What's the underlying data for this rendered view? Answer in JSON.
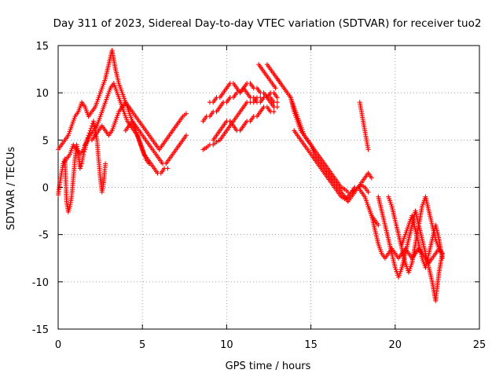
{
  "chart_data": {
    "type": "scatter",
    "title": "Day 311 of 2023, Sidereal Day-to-day VTEC variation (SDTVAR) for receiver tuo2",
    "xlabel": "GPS time / hours",
    "ylabel": "SDTVAR / TECUs",
    "xlim": [
      0,
      25
    ],
    "ylim": [
      -15,
      15
    ],
    "xticks": [
      "0",
      "5",
      "10",
      "15",
      "20",
      "25"
    ],
    "yticks": [
      "-15",
      "-10",
      "-5",
      "0",
      "5",
      "10",
      "15"
    ],
    "grid": true,
    "marker": "+",
    "color": "#ff0000",
    "series": [
      {
        "name": "t1",
        "x": [
          0.0,
          0.1,
          0.2,
          0.3,
          0.4,
          0.5,
          0.6,
          0.7,
          0.8,
          0.9,
          1.0,
          1.1,
          1.2,
          1.3,
          1.4,
          1.5,
          1.6,
          1.7,
          1.8,
          1.9,
          2.0,
          2.1,
          2.2,
          2.3,
          2.4,
          2.5,
          2.6,
          2.7,
          2.8
        ],
        "y": [
          -0.8,
          0.5,
          1.5,
          2.5,
          3.0,
          -1.5,
          -2.6,
          -2.0,
          -1.0,
          1.0,
          3.0,
          4.5,
          3.5,
          2.0,
          2.5,
          3.5,
          4.0,
          5.0,
          5.5,
          6.0,
          6.5,
          7.0,
          6.0,
          5.0,
          3.0,
          1.0,
          -0.5,
          0.5,
          2.5
        ]
      },
      {
        "name": "t2",
        "x": [
          0.0,
          0.2,
          0.4,
          0.6,
          0.8,
          1.0,
          1.2,
          1.4,
          1.6,
          1.8,
          2.0,
          2.2,
          2.4,
          2.6,
          2.8,
          3.0,
          3.2,
          3.4,
          3.6,
          3.8,
          4.0,
          4.2,
          4.4,
          4.6,
          4.8,
          5.0,
          5.2,
          5.4
        ],
        "y": [
          4.0,
          4.5,
          5.0,
          5.5,
          6.5,
          7.5,
          8.0,
          9.0,
          8.5,
          7.5,
          8.0,
          8.5,
          9.5,
          10.5,
          11.5,
          13.0,
          14.5,
          12.5,
          11.0,
          10.0,
          9.0,
          8.0,
          7.0,
          6.0,
          5.0,
          4.0,
          3.0,
          2.5
        ]
      },
      {
        "name": "t3",
        "x": [
          0.3,
          0.5,
          0.7,
          0.9,
          1.1,
          1.3,
          1.5,
          1.7,
          1.9,
          2.1,
          2.3,
          2.5,
          2.7,
          2.9,
          3.1,
          3.3,
          3.5,
          3.7,
          3.9,
          4.1,
          4.3,
          4.5,
          4.7,
          4.9,
          5.1,
          5.3,
          5.5,
          5.7,
          5.9,
          6.1,
          6.3,
          6.5
        ],
        "y": [
          2.5,
          3.0,
          3.5,
          4.5,
          4.0,
          3.5,
          4.0,
          5.0,
          5.5,
          6.0,
          6.5,
          7.5,
          8.5,
          9.5,
          10.5,
          11.0,
          10.0,
          9.0,
          8.0,
          7.0,
          6.5,
          6.0,
          5.5,
          4.5,
          3.5,
          3.0,
          2.5,
          2.0,
          1.5,
          1.5,
          2.0,
          2.0
        ]
      },
      {
        "name": "t4",
        "x": [
          1.6,
          1.8,
          2.0,
          2.2,
          2.4,
          2.6,
          2.8,
          3.0,
          3.2,
          3.4,
          3.6,
          3.8,
          4.0,
          4.2,
          4.4,
          4.6,
          4.8,
          5.0,
          5.2,
          5.4,
          5.6,
          5.8,
          6.0,
          6.2,
          6.4,
          6.6,
          6.8,
          7.0,
          7.2,
          7.4,
          7.6
        ],
        "y": [
          4.5,
          5.0,
          5.0,
          5.5,
          6.0,
          6.5,
          6.0,
          5.5,
          6.0,
          7.0,
          8.0,
          8.5,
          9.0,
          8.5,
          8.0,
          7.5,
          7.0,
          6.5,
          6.0,
          5.5,
          5.0,
          4.5,
          4.0,
          4.5,
          5.0,
          5.5,
          6.0,
          6.5,
          7.0,
          7.5,
          7.8
        ]
      },
      {
        "name": "t5",
        "x": [
          4.0,
          4.2,
          4.4,
          4.6,
          4.8,
          5.0,
          5.2,
          5.4,
          5.6,
          5.8,
          6.0,
          6.2,
          6.4,
          6.6,
          6.8,
          7.0,
          7.2,
          7.4,
          7.6
        ],
        "y": [
          6.0,
          6.5,
          7.0,
          6.5,
          6.0,
          5.5,
          5.0,
          4.5,
          4.0,
          3.5,
          3.0,
          2.5,
          2.5,
          3.0,
          3.5,
          4.0,
          4.5,
          5.0,
          5.5
        ]
      },
      {
        "name": "t6",
        "x": [
          8.6,
          8.8,
          9.0,
          9.2,
          9.4,
          9.6,
          9.8,
          10.0,
          10.2,
          10.4,
          10.6,
          10.8,
          11.0,
          11.2,
          11.4,
          11.6,
          11.8,
          12.0,
          12.2,
          12.4,
          12.6,
          12.8,
          13.0
        ],
        "y": [
          7.0,
          7.5,
          7.5,
          8.0,
          8.0,
          8.5,
          9.0,
          9.0,
          9.5,
          9.5,
          10.0,
          10.0,
          10.5,
          10.0,
          9.5,
          9.5,
          9.0,
          9.0,
          9.5,
          9.5,
          10.0,
          10.0,
          9.5
        ]
      },
      {
        "name": "t7",
        "x": [
          8.6,
          8.8,
          9.0,
          9.2,
          9.4,
          9.6,
          9.8,
          10.0,
          10.2,
          10.4,
          10.6,
          10.8,
          11.0,
          11.2,
          11.4,
          11.6,
          11.8,
          12.0,
          12.2,
          12.4,
          12.6,
          12.8,
          13.0
        ],
        "y": [
          4.0,
          4.2,
          4.5,
          4.5,
          4.8,
          5.0,
          5.5,
          6.0,
          6.5,
          7.0,
          7.5,
          8.0,
          8.5,
          9.0,
          9.0,
          9.0,
          9.5,
          9.5,
          9.5,
          9.5,
          9.0,
          8.5,
          8.5
        ]
      },
      {
        "name": "t8",
        "x": [
          9.2,
          9.4,
          9.6,
          9.8,
          10.0,
          10.2,
          10.4,
          10.6,
          10.8,
          11.0,
          11.2,
          11.4,
          11.6,
          11.8,
          12.0,
          12.2,
          12.4,
          12.6,
          12.8
        ],
        "y": [
          5.0,
          5.5,
          6.0,
          6.5,
          7.0,
          7.0,
          6.5,
          6.0,
          6.0,
          6.5,
          7.0,
          7.0,
          7.5,
          7.5,
          8.0,
          8.5,
          8.5,
          8.0,
          8.0
        ]
      },
      {
        "name": "t9",
        "x": [
          9.0,
          9.2,
          9.4,
          9.6,
          9.8,
          10.0,
          10.2,
          10.4,
          10.6,
          10.8,
          11.0,
          11.2,
          11.4,
          11.6,
          11.8,
          12.0,
          12.2,
          12.4,
          12.6,
          12.8,
          13.0
        ],
        "y": [
          9.0,
          9.0,
          9.5,
          9.5,
          10.0,
          10.5,
          11.0,
          11.0,
          10.5,
          10.0,
          10.5,
          11.0,
          11.0,
          10.5,
          10.5,
          10.0,
          10.0,
          9.5,
          9.5,
          9.0,
          9.0
        ]
      },
      {
        "name": "t10",
        "x": [
          11.9,
          12.1,
          12.3,
          12.5,
          12.7,
          12.9
        ],
        "y": [
          13.0,
          12.5,
          12.0,
          11.5,
          11.0,
          10.5
        ]
      },
      {
        "name": "t11",
        "x": [
          12.4,
          12.6,
          12.8,
          13.0,
          13.2
        ],
        "y": [
          13.0,
          12.5,
          12.0,
          11.5,
          11.0
        ]
      },
      {
        "name": "t12",
        "x": [
          13.0,
          13.2,
          13.4,
          13.6,
          13.8,
          14.0,
          14.2,
          14.4,
          14.6,
          14.8,
          15.0,
          15.2,
          15.4,
          15.6,
          15.8,
          16.0,
          16.2,
          16.4,
          16.6,
          16.8,
          17.0,
          17.2,
          17.4,
          17.6,
          17.8,
          18.0,
          18.2,
          18.4,
          18.6
        ],
        "y": [
          11.5,
          11.0,
          10.5,
          10.0,
          9.5,
          8.0,
          7.0,
          6.0,
          5.5,
          5.0,
          4.5,
          4.0,
          3.5,
          3.0,
          2.5,
          2.0,
          1.5,
          1.0,
          0.5,
          0.0,
          -0.2,
          -0.5,
          -0.5,
          -0.3,
          0.0,
          0.5,
          1.0,
          1.5,
          1.0
        ]
      },
      {
        "name": "t13",
        "x": [
          13.8,
          14.0,
          14.2,
          14.4,
          14.6,
          14.8,
          15.0,
          15.2,
          15.4,
          15.6,
          15.8,
          16.0,
          16.2,
          16.4,
          16.6,
          16.8,
          17.0,
          17.2,
          17.4,
          17.6,
          17.8,
          18.0,
          18.2,
          18.4
        ],
        "y": [
          9.5,
          8.5,
          7.5,
          6.5,
          5.5,
          5.0,
          4.5,
          3.5,
          3.0,
          2.5,
          2.0,
          1.5,
          1.0,
          0.5,
          0.0,
          -0.5,
          -1.0,
          -1.5,
          -1.0,
          -0.5,
          0.0,
          0.2,
          0.0,
          -0.5
        ]
      },
      {
        "name": "t14",
        "x": [
          14.0,
          14.2,
          14.4,
          14.6,
          14.8,
          15.0,
          15.2,
          15.4,
          15.6,
          15.8,
          16.0,
          16.2,
          16.4,
          16.6,
          16.8,
          17.0,
          17.2,
          17.4,
          17.6,
          17.8,
          18.0,
          18.2,
          18.4,
          18.6,
          18.8,
          19.0
        ],
        "y": [
          6.0,
          5.5,
          5.0,
          4.5,
          4.0,
          3.5,
          3.0,
          2.5,
          2.0,
          1.5,
          1.0,
          0.5,
          0.0,
          -0.5,
          -1.0,
          -1.2,
          -1.0,
          -0.5,
          0.0,
          0.0,
          -0.5,
          -1.0,
          -2.0,
          -3.0,
          -3.5,
          -4.0
        ]
      },
      {
        "name": "t15",
        "x": [
          17.9,
          18.0,
          18.1,
          18.2,
          18.3,
          18.4
        ],
        "y": [
          9.0,
          8.0,
          7.0,
          6.0,
          5.0,
          4.0
        ]
      },
      {
        "name": "t16",
        "x": [
          18.4,
          18.6,
          18.8,
          19.0,
          19.2,
          19.4,
          19.6,
          19.8,
          20.0,
          20.2,
          20.4,
          20.6,
          20.8,
          21.0,
          21.2,
          21.4,
          21.6,
          21.8,
          22.0,
          22.2,
          22.4,
          22.6,
          22.8
        ],
        "y": [
          -2.0,
          -3.0,
          -4.5,
          -6.0,
          -7.0,
          -7.5,
          -7.0,
          -6.5,
          -7.0,
          -7.5,
          -7.0,
          -6.5,
          -7.0,
          -7.5,
          -7.0,
          -6.5,
          -7.0,
          -7.5,
          -8.0,
          -7.5,
          -7.0,
          -6.5,
          -7.0
        ]
      },
      {
        "name": "t17",
        "x": [
          19.0,
          19.2,
          19.4,
          19.6,
          19.8,
          20.0,
          20.2,
          20.4,
          20.6,
          20.8,
          21.0,
          21.2,
          21.4,
          21.6,
          21.8,
          22.0,
          22.2,
          22.4,
          22.6,
          22.8
        ],
        "y": [
          -1.0,
          -2.5,
          -4.0,
          -5.5,
          -7.0,
          -8.5,
          -9.5,
          -8.5,
          -7.0,
          -5.5,
          -4.0,
          -2.5,
          -4.0,
          -5.5,
          -7.0,
          -8.5,
          -10.0,
          -12.0,
          -9.0,
          -7.0
        ]
      },
      {
        "name": "t18",
        "x": [
          19.6,
          19.8,
          20.0,
          20.2,
          20.4,
          20.6,
          20.8,
          21.0,
          21.2,
          21.4,
          21.6,
          21.8,
          22.0,
          22.2,
          22.4,
          22.6,
          22.8
        ],
        "y": [
          -1.0,
          -2.0,
          -3.5,
          -5.0,
          -6.5,
          -8.0,
          -9.0,
          -8.0,
          -6.0,
          -4.0,
          -2.0,
          -1.0,
          -2.5,
          -4.0,
          -5.5,
          -6.5,
          -7.0
        ]
      },
      {
        "name": "t19",
        "x": [
          20.4,
          20.6,
          20.8,
          21.0,
          21.2,
          21.4,
          21.6,
          21.8,
          22.0,
          22.2,
          22.4,
          22.6,
          22.8
        ],
        "y": [
          -6.0,
          -5.0,
          -4.0,
          -3.0,
          -4.5,
          -6.0,
          -7.5,
          -8.5,
          -7.0,
          -5.5,
          -4.0,
          -5.5,
          -7.5
        ]
      }
    ]
  }
}
